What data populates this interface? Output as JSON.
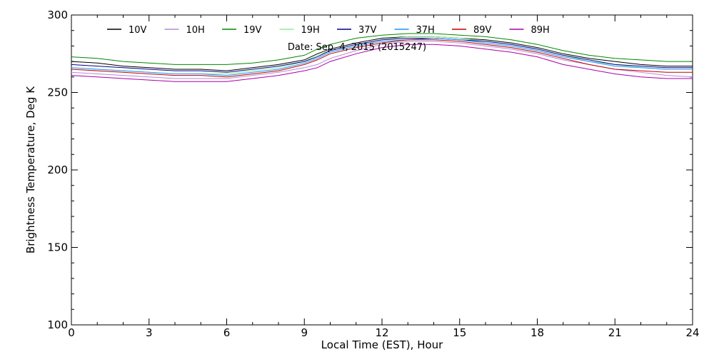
{
  "chart_data": {
    "type": "line",
    "date_label": "Date: Sep. 4, 2015 (2015247)",
    "xlabel": "Local Time (EST), Hour",
    "ylabel": "Brightness Temperature, Deg K",
    "xlim": [
      0,
      24
    ],
    "ylim": [
      100,
      300
    ],
    "x_ticks": [
      0,
      3,
      6,
      9,
      12,
      15,
      18,
      21,
      24
    ],
    "x_tick_labels": [
      "0",
      "3",
      "6",
      "9",
      "12",
      "15",
      "18",
      "21",
      "24"
    ],
    "y_ticks": [
      100,
      150,
      200,
      250,
      300
    ],
    "y_tick_labels": [
      "100",
      "150",
      "200",
      "250",
      "300"
    ],
    "grid": false,
    "legend_position": "top",
    "x": [
      0,
      1,
      2,
      3,
      4,
      5,
      6,
      7,
      8,
      9,
      9.5,
      10,
      11,
      12,
      13,
      14,
      15,
      16,
      17,
      18,
      19,
      20,
      21,
      22,
      23,
      24
    ],
    "series": [
      {
        "name": "10V",
        "color": "#000000",
        "values": [
          270,
          269,
          267,
          266,
          265,
          265,
          264,
          266,
          268,
          271,
          275,
          278,
          282,
          285,
          286,
          286,
          285,
          284,
          282,
          279,
          275,
          272,
          270,
          268,
          267,
          267
        ]
      },
      {
        "name": "10H",
        "color": "#b58ad6",
        "values": [
          263,
          262,
          261,
          260,
          259,
          259,
          259,
          261,
          263,
          266,
          268,
          272,
          277,
          281,
          283,
          283,
          282,
          280,
          278,
          275,
          271,
          268,
          265,
          263,
          261,
          260
        ]
      },
      {
        "name": "19V",
        "color": "#008800",
        "values": [
          273,
          272,
          270,
          269,
          268,
          268,
          268,
          269,
          271,
          274,
          278,
          281,
          285,
          287,
          288,
          288,
          287,
          286,
          284,
          281,
          277,
          274,
          272,
          271,
          270,
          270
        ]
      },
      {
        "name": "19H",
        "color": "#90ee90",
        "values": [
          266,
          265,
          264,
          263,
          262,
          262,
          262,
          264,
          266,
          270,
          274,
          277,
          281,
          284,
          286,
          286,
          285,
          283,
          281,
          278,
          274,
          270,
          268,
          266,
          265,
          265
        ]
      },
      {
        "name": "37V",
        "color": "#00008b",
        "values": [
          268,
          267,
          266,
          265,
          264,
          264,
          263,
          265,
          267,
          270,
          273,
          277,
          281,
          284,
          285,
          285,
          284,
          283,
          281,
          278,
          274,
          271,
          268,
          267,
          266,
          266
        ]
      },
      {
        "name": "37H",
        "color": "#1e90ff",
        "values": [
          266,
          265,
          264,
          263,
          262,
          262,
          261,
          263,
          265,
          269,
          272,
          276,
          280,
          283,
          284,
          285,
          284,
          282,
          280,
          277,
          273,
          270,
          267,
          266,
          265,
          265
        ]
      },
      {
        "name": "89V",
        "color": "#c00000",
        "values": [
          265,
          264,
          263,
          262,
          261,
          261,
          260,
          262,
          264,
          268,
          271,
          275,
          279,
          282,
          284,
          284,
          283,
          281,
          279,
          276,
          272,
          268,
          265,
          264,
          263,
          263
        ]
      },
      {
        "name": "89H",
        "color": "#aa00aa",
        "values": [
          261,
          260,
          259,
          258,
          257,
          257,
          257,
          259,
          261,
          264,
          266,
          270,
          275,
          279,
          281,
          281,
          280,
          278,
          276,
          273,
          268,
          265,
          262,
          260,
          259,
          259
        ]
      }
    ]
  }
}
